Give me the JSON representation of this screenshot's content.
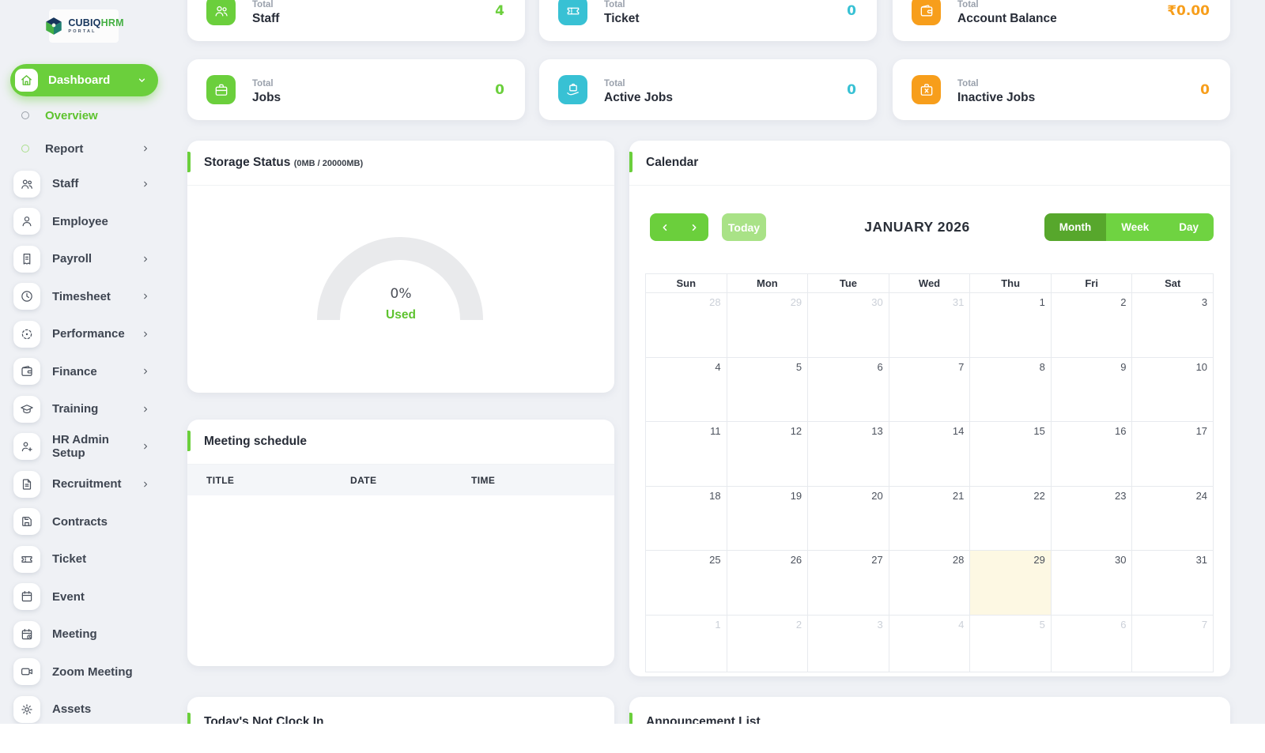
{
  "brand": {
    "primary": "CUBIQ",
    "secondary": "HRM",
    "sub": "PORTAL"
  },
  "sidebar": {
    "items": [
      {
        "kind": "pill",
        "label": "Dashboard",
        "icon": "home",
        "chevron": "down",
        "active": true
      },
      {
        "kind": "sub",
        "label": "Overview",
        "active": true
      },
      {
        "kind": "sub",
        "label": "Report",
        "chevron": "right"
      },
      {
        "kind": "item",
        "label": "Staff",
        "icon": "users",
        "chevron": "right"
      },
      {
        "kind": "item",
        "label": "Employee",
        "icon": "user"
      },
      {
        "kind": "item",
        "label": "Payroll",
        "icon": "receipt",
        "chevron": "right"
      },
      {
        "kind": "item",
        "label": "Timesheet",
        "icon": "clock",
        "chevron": "right"
      },
      {
        "kind": "item",
        "label": "Performance",
        "icon": "target",
        "chevron": "right"
      },
      {
        "kind": "item",
        "label": "Finance",
        "icon": "wallet",
        "chevron": "right"
      },
      {
        "kind": "item",
        "label": "Training",
        "icon": "graduation",
        "chevron": "right"
      },
      {
        "kind": "item",
        "label": "HR Admin Setup",
        "icon": "user-plus",
        "chevron": "right"
      },
      {
        "kind": "item",
        "label": "Recruitment",
        "icon": "document",
        "chevron": "right"
      },
      {
        "kind": "item",
        "label": "Contracts",
        "icon": "save"
      },
      {
        "kind": "item",
        "label": "Ticket",
        "icon": "ticket"
      },
      {
        "kind": "item",
        "label": "Event",
        "icon": "calendar"
      },
      {
        "kind": "item",
        "label": "Meeting",
        "icon": "calendar-clock"
      },
      {
        "kind": "item",
        "label": "Zoom Meeting",
        "icon": "video"
      },
      {
        "kind": "item",
        "label": "Assets",
        "icon": "gear"
      }
    ]
  },
  "stats": [
    {
      "prefix": "Total",
      "label": "Staff",
      "value": "4",
      "icon": "users",
      "color": "#6bcf3c",
      "row": 1,
      "col": 1
    },
    {
      "prefix": "Total",
      "label": "Ticket",
      "value": "0",
      "icon": "ticket",
      "color": "#38c1d4",
      "row": 1,
      "col": 2
    },
    {
      "prefix": "Total",
      "label": "Account Balance",
      "value": "₹0.00",
      "icon": "wallet",
      "color": "#f79e1b",
      "row": 1,
      "col": 3
    },
    {
      "prefix": "Total",
      "label": "Jobs",
      "value": "0",
      "icon": "briefcase",
      "color": "#6bcf3c",
      "row": 2,
      "col": 1
    },
    {
      "prefix": "Total",
      "label": "Active Jobs",
      "value": "0",
      "icon": "briefcase-hand",
      "color": "#38c1d4",
      "row": 2,
      "col": 2
    },
    {
      "prefix": "Total",
      "label": "Inactive Jobs",
      "value": "0",
      "icon": "briefcase-x",
      "color": "#f79e1b",
      "row": 2,
      "col": 3
    }
  ],
  "storage": {
    "title": "Storage Status",
    "capacity": "(0MB / 20000MB)",
    "percent": "0%",
    "used_label": "Used"
  },
  "chart_data": {
    "type": "gauge",
    "title": "Storage Status",
    "used_mb": 0,
    "total_mb": 20000,
    "percent_used": 0,
    "unit": "MB",
    "center_label": "0%",
    "sub_label": "Used"
  },
  "meeting_schedule": {
    "title": "Meeting schedule",
    "columns": [
      "TITLE",
      "DATE",
      "TIME"
    ],
    "rows": []
  },
  "calendar": {
    "title": "Calendar",
    "today_label": "Today",
    "month_title": "JANUARY 2026",
    "views": [
      "Month",
      "Week",
      "Day"
    ],
    "active_view": "Month",
    "day_headers": [
      "Sun",
      "Mon",
      "Tue",
      "Wed",
      "Thu",
      "Fri",
      "Sat"
    ],
    "weeks": [
      [
        {
          "d": "28",
          "other": true
        },
        {
          "d": "29",
          "other": true
        },
        {
          "d": "30",
          "other": true
        },
        {
          "d": "31",
          "other": true
        },
        {
          "d": "1"
        },
        {
          "d": "2"
        },
        {
          "d": "3"
        }
      ],
      [
        {
          "d": "4"
        },
        {
          "d": "5"
        },
        {
          "d": "6"
        },
        {
          "d": "7"
        },
        {
          "d": "8"
        },
        {
          "d": "9"
        },
        {
          "d": "10"
        }
      ],
      [
        {
          "d": "11"
        },
        {
          "d": "12"
        },
        {
          "d": "13"
        },
        {
          "d": "14"
        },
        {
          "d": "15"
        },
        {
          "d": "16"
        },
        {
          "d": "17"
        }
      ],
      [
        {
          "d": "18"
        },
        {
          "d": "19"
        },
        {
          "d": "20"
        },
        {
          "d": "21"
        },
        {
          "d": "22"
        },
        {
          "d": "23"
        },
        {
          "d": "24"
        }
      ],
      [
        {
          "d": "25"
        },
        {
          "d": "26"
        },
        {
          "d": "27"
        },
        {
          "d": "28"
        },
        {
          "d": "29",
          "today": true
        },
        {
          "d": "30"
        },
        {
          "d": "31"
        }
      ],
      [
        {
          "d": "1",
          "other": true
        },
        {
          "d": "2",
          "other": true
        },
        {
          "d": "3",
          "other": true
        },
        {
          "d": "4",
          "other": true
        },
        {
          "d": "5",
          "other": true
        },
        {
          "d": "6",
          "other": true
        },
        {
          "d": "7",
          "other": true
        }
      ]
    ]
  },
  "bottom": {
    "left_title": "Today's Not Clock In",
    "right_title": "Announcement List"
  },
  "colors": {
    "green": "#6bcf3c",
    "green_dark": "#57a72c",
    "green_pale": "#a9e287",
    "teal": "#38c1d4",
    "orange": "#f79e1b",
    "today_highlight": "#fdf8e3"
  }
}
